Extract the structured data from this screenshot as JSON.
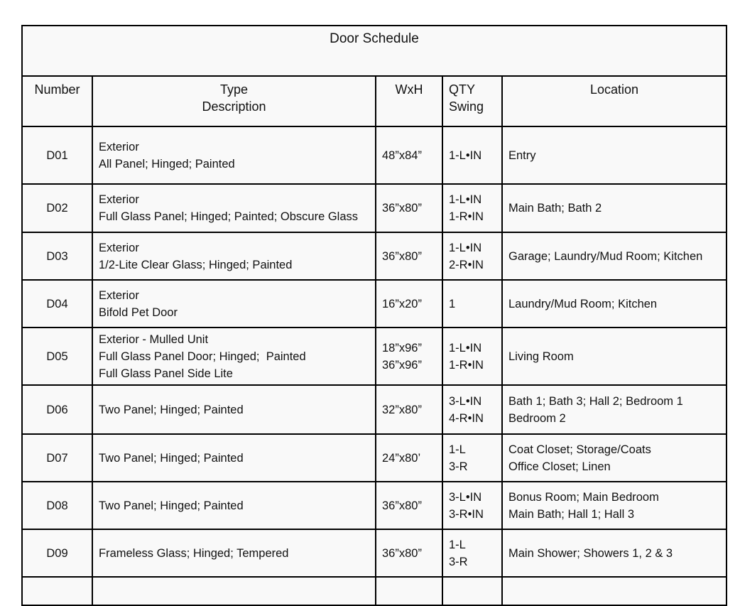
{
  "title": "Door Schedule",
  "headers": {
    "number": "Number",
    "type": [
      "Type",
      "Description"
    ],
    "size": "WxH",
    "qty": [
      "QTY",
      "Swing"
    ],
    "location": "Location"
  },
  "rows": [
    {
      "number": "D01",
      "description": [
        "Exterior",
        "All Panel; Hinged; Painted"
      ],
      "size": [
        "48”x84”"
      ],
      "qty": [
        "1-L•IN"
      ],
      "location": [
        "Entry"
      ]
    },
    {
      "number": "D02",
      "description": [
        "Exterior",
        "Full Glass Panel; Hinged; Painted; Obscure Glass"
      ],
      "size": [
        "36”x80”"
      ],
      "qty": [
        "1-L•IN",
        "1-R•IN"
      ],
      "location": [
        "Main Bath; Bath 2"
      ]
    },
    {
      "number": "D03",
      "description": [
        "Exterior",
        "1/2-Lite Clear Glass; Hinged; Painted"
      ],
      "size": [
        "36”x80”"
      ],
      "qty": [
        "1-L•IN",
        "2-R•IN"
      ],
      "location": [
        "Garage; Laundry/Mud Room; Kitchen"
      ]
    },
    {
      "number": "D04",
      "description": [
        "Exterior",
        "Bifold Pet Door"
      ],
      "size": [
        "16”x20”"
      ],
      "qty": [
        "1"
      ],
      "location": [
        "Laundry/Mud Room; Kitchen"
      ]
    },
    {
      "number": "D05",
      "description": [
        "Exterior - Mulled Unit",
        "Full Glass Panel Door; Hinged;  Painted",
        "Full Glass Panel Side Lite"
      ],
      "size": [
        "18”x96”",
        "36”x96”"
      ],
      "qty": [
        "1-L•IN",
        "1-R•IN"
      ],
      "location": [
        "Living Room"
      ]
    },
    {
      "number": "D06",
      "description": [
        "Two Panel; Hinged; Painted"
      ],
      "size": [
        "32”x80”"
      ],
      "qty": [
        "3-L•IN",
        "4-R•IN"
      ],
      "location": [
        "Bath 1; Bath 3; Hall 2; Bedroom 1",
        "Bedroom 2"
      ]
    },
    {
      "number": "D07",
      "description": [
        "Two Panel; Hinged; Painted"
      ],
      "size": [
        "24”x80’"
      ],
      "qty": [
        "1-L",
        "3-R"
      ],
      "location": [
        "Coat Closet; Storage/Coats",
        "Office Closet; Linen"
      ]
    },
    {
      "number": "D08",
      "description": [
        "Two Panel; Hinged; Painted"
      ],
      "size": [
        "36”x80”"
      ],
      "qty": [
        "3-L•IN",
        "3-R•IN"
      ],
      "location": [
        "Bonus Room; Main Bedroom",
        "Main Bath; Hall 1; Hall 3"
      ]
    },
    {
      "number": "D09",
      "description": [
        "Frameless Glass; Hinged; Tempered"
      ],
      "size": [
        "36”x80”"
      ],
      "qty": [
        "1-L",
        "3-R"
      ],
      "location": [
        "Main Shower; Showers 1, 2 & 3"
      ]
    }
  ]
}
